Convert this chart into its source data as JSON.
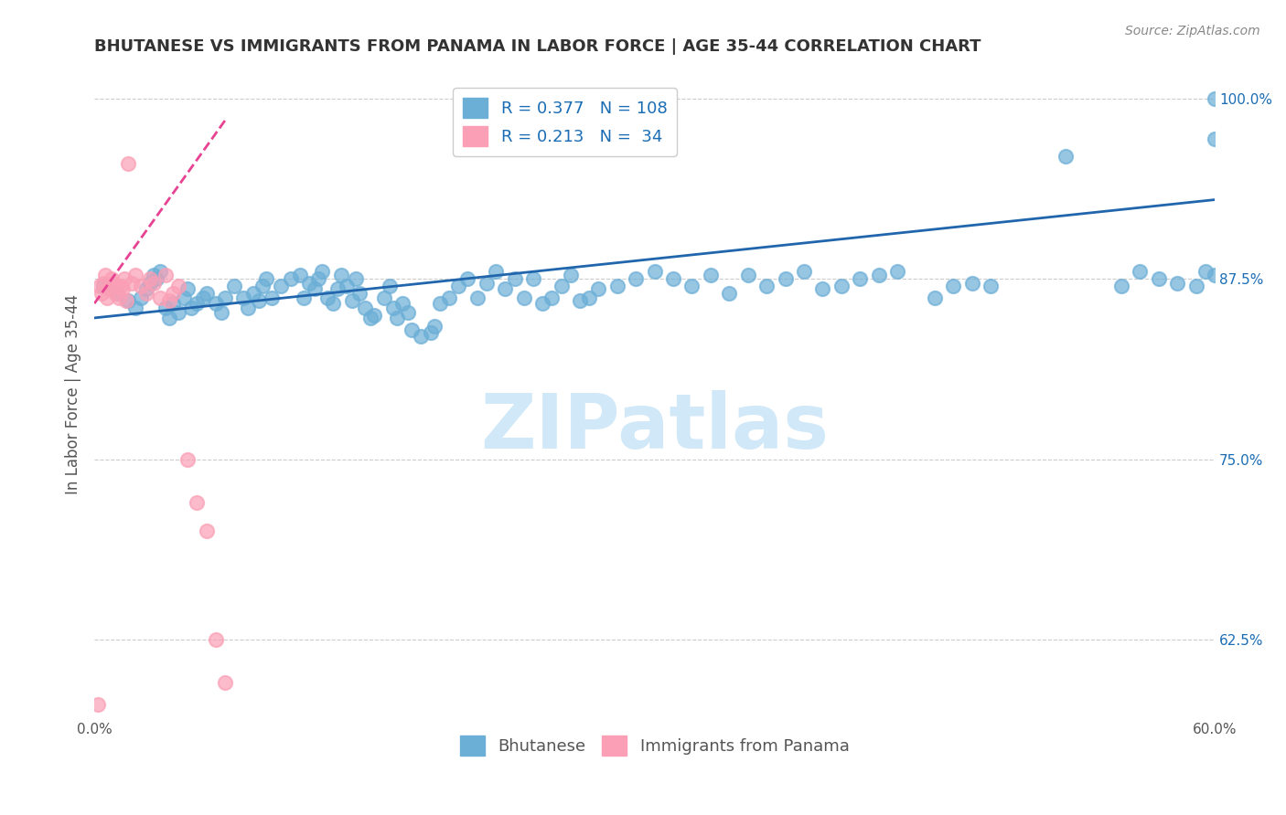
{
  "title": "BHUTANESE VS IMMIGRANTS FROM PANAMA IN LABOR FORCE | AGE 35-44 CORRELATION CHART",
  "source": "Source: ZipAtlas.com",
  "ylabel": "In Labor Force | Age 35-44",
  "xlim": [
    0.0,
    0.6
  ],
  "ylim": [
    0.57,
    1.02
  ],
  "xticks": [
    0.0,
    0.1,
    0.2,
    0.3,
    0.4,
    0.5,
    0.6
  ],
  "xticklabels": [
    "0.0%",
    "",
    "",
    "",
    "",
    "",
    "60.0%"
  ],
  "yticks_right": [
    0.625,
    0.75,
    0.875,
    1.0
  ],
  "ytick_labels_right": [
    "62.5%",
    "75.0%",
    "87.5%",
    "100.0%"
  ],
  "legend_blue_R": "0.377",
  "legend_blue_N": "108",
  "legend_pink_R": "0.213",
  "legend_pink_N": "34",
  "blue_color": "#6baed6",
  "pink_color": "#fa9fb5",
  "blue_line_color": "#2166ac",
  "pink_line_color": "#e84393",
  "watermark": "ZIPatlas",
  "watermark_color": "#d0e8f8",
  "background_color": "#ffffff",
  "grid_color": "#cccccc",
  "legend_text_color": "#1a6db5",
  "title_color": "#333333",
  "right_axis_color": "#1a6db5",
  "blue_scatter_x": [
    0.005,
    0.012,
    0.018,
    0.022,
    0.025,
    0.028,
    0.03,
    0.032,
    0.033,
    0.035,
    0.038,
    0.04,
    0.042,
    0.045,
    0.048,
    0.05,
    0.052,
    0.055,
    0.058,
    0.06,
    0.065,
    0.068,
    0.07,
    0.075,
    0.08,
    0.082,
    0.085,
    0.088,
    0.09,
    0.092,
    0.095,
    0.1,
    0.105,
    0.11,
    0.112,
    0.115,
    0.118,
    0.12,
    0.122,
    0.125,
    0.128,
    0.13,
    0.132,
    0.135,
    0.138,
    0.14,
    0.142,
    0.145,
    0.148,
    0.15,
    0.155,
    0.158,
    0.16,
    0.162,
    0.165,
    0.168,
    0.17,
    0.175,
    0.18,
    0.182,
    0.185,
    0.19,
    0.195,
    0.2,
    0.205,
    0.21,
    0.215,
    0.22,
    0.225,
    0.23,
    0.235,
    0.24,
    0.245,
    0.25,
    0.255,
    0.26,
    0.265,
    0.27,
    0.28,
    0.29,
    0.3,
    0.31,
    0.32,
    0.33,
    0.34,
    0.35,
    0.36,
    0.37,
    0.38,
    0.39,
    0.4,
    0.41,
    0.42,
    0.43,
    0.45,
    0.46,
    0.47,
    0.48,
    0.52,
    0.55,
    0.56,
    0.57,
    0.58,
    0.59,
    0.595,
    0.6,
    0.6,
    0.6
  ],
  "blue_scatter_y": [
    0.87,
    0.865,
    0.86,
    0.855,
    0.862,
    0.868,
    0.872,
    0.878,
    0.875,
    0.88,
    0.855,
    0.848,
    0.858,
    0.852,
    0.862,
    0.868,
    0.855,
    0.858,
    0.862,
    0.865,
    0.858,
    0.852,
    0.862,
    0.87,
    0.862,
    0.855,
    0.865,
    0.86,
    0.87,
    0.875,
    0.862,
    0.87,
    0.875,
    0.878,
    0.862,
    0.872,
    0.868,
    0.875,
    0.88,
    0.862,
    0.858,
    0.868,
    0.878,
    0.87,
    0.86,
    0.875,
    0.865,
    0.855,
    0.848,
    0.85,
    0.862,
    0.87,
    0.855,
    0.848,
    0.858,
    0.852,
    0.84,
    0.835,
    0.838,
    0.842,
    0.858,
    0.862,
    0.87,
    0.875,
    0.862,
    0.872,
    0.88,
    0.868,
    0.875,
    0.862,
    0.875,
    0.858,
    0.862,
    0.87,
    0.878,
    0.86,
    0.862,
    0.868,
    0.87,
    0.875,
    0.88,
    0.875,
    0.87,
    0.878,
    0.865,
    0.878,
    0.87,
    0.875,
    0.88,
    0.868,
    0.87,
    0.875,
    0.878,
    0.88,
    0.862,
    0.87,
    0.872,
    0.87,
    0.96,
    0.87,
    0.88,
    0.875,
    0.872,
    0.87,
    0.88,
    0.878,
    1.0,
    0.972
  ],
  "pink_scatter_x": [
    0.003,
    0.004,
    0.005,
    0.006,
    0.007,
    0.008,
    0.009,
    0.01,
    0.011,
    0.012,
    0.013,
    0.014,
    0.015,
    0.016,
    0.017,
    0.018,
    0.02,
    0.022,
    0.025,
    0.028,
    0.03,
    0.032,
    0.035,
    0.038,
    0.04,
    0.042,
    0.045,
    0.05,
    0.055,
    0.06,
    0.065,
    0.07,
    0.002,
    0.003
  ],
  "pink_scatter_y": [
    0.87,
    0.865,
    0.872,
    0.878,
    0.862,
    0.868,
    0.875,
    0.872,
    0.865,
    0.87,
    0.862,
    0.87,
    0.868,
    0.875,
    0.86,
    0.955,
    0.872,
    0.878,
    0.87,
    0.865,
    0.875,
    0.872,
    0.862,
    0.878,
    0.86,
    0.865,
    0.87,
    0.75,
    0.72,
    0.7,
    0.625,
    0.595,
    0.58,
    0.56
  ],
  "blue_trendline_x": [
    0.0,
    0.6
  ],
  "blue_trendline_y": [
    0.848,
    0.93
  ],
  "pink_trendline_x": [
    0.0,
    0.07
  ],
  "pink_trendline_y": [
    0.858,
    0.985
  ]
}
